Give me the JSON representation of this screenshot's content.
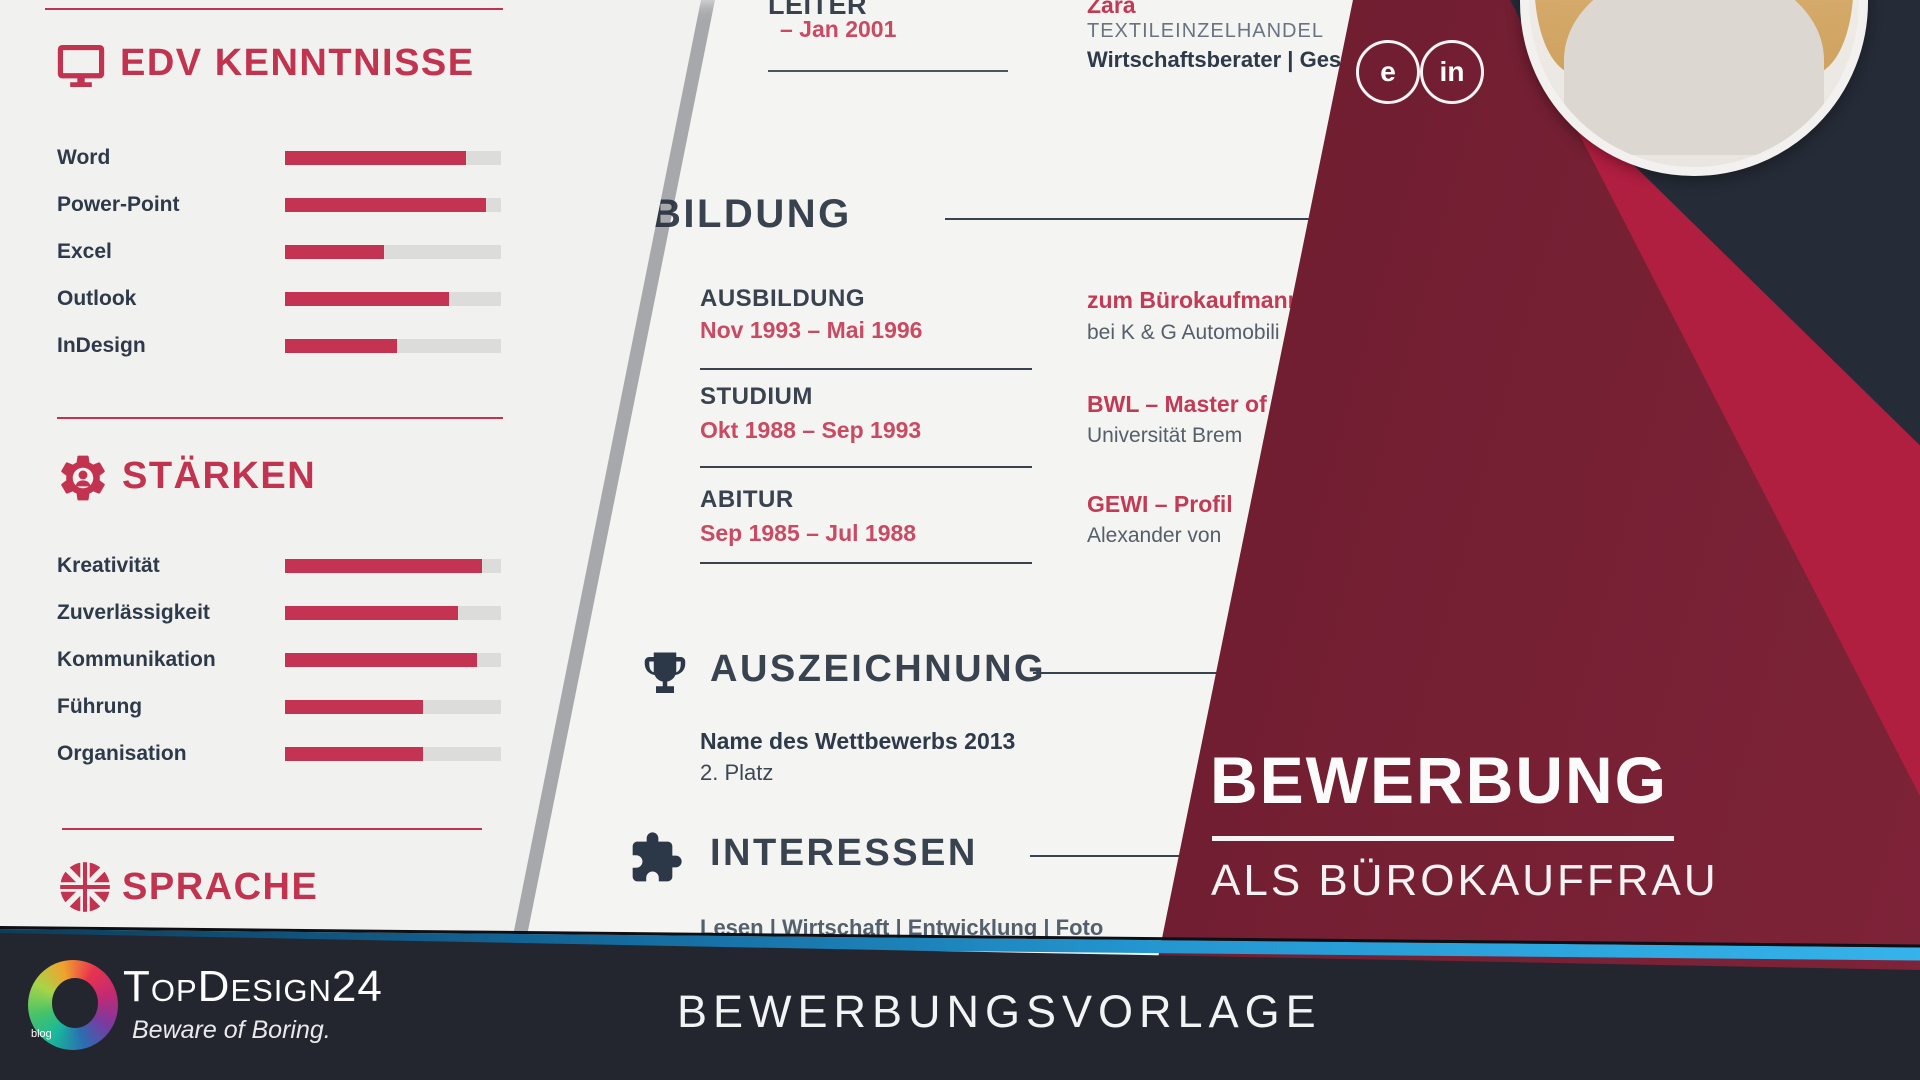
{
  "colors": {
    "accent_red": "#c23350",
    "date_red": "#ca4a63",
    "dark_text": "#2e3949",
    "gray_text": "#6a7480",
    "maroon": "#6d1c2f",
    "crimson": "#b01e40",
    "navy": "#252b37",
    "footer_bar": "#23262e",
    "stripe_blue": "#2ea6e2"
  },
  "left_page": {
    "edv": {
      "title": "EDV KENNTNISSE",
      "icon": "monitor-icon",
      "skills": [
        {
          "label": "Word",
          "percent": 84
        },
        {
          "label": "Power-Point",
          "percent": 93
        },
        {
          "label": "Excel",
          "percent": 46
        },
        {
          "label": "Outlook",
          "percent": 76
        },
        {
          "label": "InDesign",
          "percent": 52
        }
      ]
    },
    "staerken": {
      "title": "STÄRKEN",
      "icon": "gear-person-icon",
      "skills": [
        {
          "label": "Kreativität",
          "percent": 91
        },
        {
          "label": "Zuverlässigkeit",
          "percent": 80
        },
        {
          "label": "Kommunikation",
          "percent": 89
        },
        {
          "label": "Führung",
          "percent": 64
        },
        {
          "label": "Organisation",
          "percent": 64
        }
      ]
    },
    "sprache": {
      "title": "SPRACHE",
      "icon": "uk-flag-icon"
    }
  },
  "mid_page": {
    "experience": {
      "job_title": "LEITER",
      "date_range": "– Jan 2001",
      "company": "Zara",
      "industry": "TEXTILEINZELHANDEL",
      "role": "Wirtschaftsberater | Geschäfts"
    },
    "bildung": {
      "title": "BILDUNG",
      "entries": [
        {
          "label": "AUSBILDUNG",
          "date_range": "Nov 1993 – Mai 1996",
          "degree": "zum Bürokaufmann",
          "institution": "bei K & G Automobili"
        },
        {
          "label": "STUDIUM",
          "date_range": "Okt 1988 – Sep 1993",
          "degree": "BWL – Master of",
          "institution": "Universität Brem"
        },
        {
          "label": "ABITUR",
          "date_range": "Sep 1985 – Jul 1988",
          "degree": "GEWI – Profil",
          "institution": "Alexander von"
        }
      ]
    },
    "auszeichnung": {
      "title": "AUSZEICHNUNG",
      "icon": "trophy-icon",
      "competition": "Name des Wettbewerbs 2013",
      "placement": "2. Platz"
    },
    "interessen": {
      "title": "INTERESSEN",
      "icon": "puzzle-icon",
      "items": "Lesen | Wirtschaft | Entwicklung | Foto"
    }
  },
  "cover": {
    "title": "BEWERBUNG",
    "subtitle": "ALS BÜROKAUFFRAU",
    "social_icons": [
      {
        "name": "social-e-icon",
        "glyph": "e"
      },
      {
        "name": "linkedin-icon",
        "glyph": "in"
      }
    ]
  },
  "footer": {
    "brand": "TopDesign24",
    "tagline": "Beware of Boring.",
    "logo_badge": "blog",
    "caption": "BEWERBUNGSVORLAGE"
  }
}
